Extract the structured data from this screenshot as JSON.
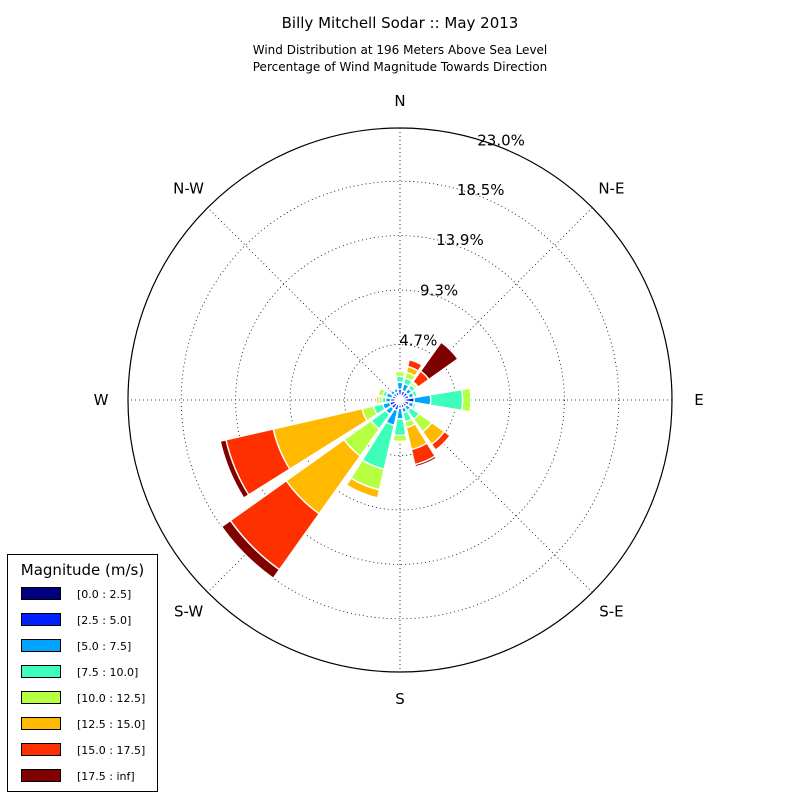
{
  "chart_data": {
    "type": "polar-bar",
    "title": "Billy Mitchell Sodar :: May 2013",
    "subtitle_lines": [
      "Wind Distribution at 196 Meters Above Sea Level",
      "Percentage of Wind Magnitude Towards Direction"
    ],
    "direction_labels": [
      "N",
      "N-E",
      "E",
      "S-E",
      "S",
      "S-W",
      "W",
      "N-W"
    ],
    "radial_tick_labels": [
      "4.7%",
      "9.3%",
      "13.9%",
      "18.5%",
      "23.0%"
    ],
    "radial_ticks": [
      4.7,
      9.3,
      13.9,
      18.5,
      23.0
    ],
    "rmax": 23.0,
    "units": "percent of observations",
    "legend_title": "Magnitude (m/s)",
    "bins": [
      {
        "label": "[0.0 : 2.5]",
        "color": "#000080"
      },
      {
        "label": "[2.5 : 5.0]",
        "color": "#0020ff"
      },
      {
        "label": "[5.0 : 7.5]",
        "color": "#00a4ff"
      },
      {
        "label": "[7.5 : 10.0]",
        "color": "#3dffba"
      },
      {
        "label": "[10.0 : 12.5]",
        "color": "#b6ff41"
      },
      {
        "label": "[12.5 : 15.0]",
        "color": "#ffb900"
      },
      {
        "label": "[15.0 : 17.5]",
        "color": "#ff3000"
      },
      {
        "label": "[17.5 : inf]",
        "color": "#800000"
      }
    ],
    "directions": [
      0,
      22.5,
      45,
      67.5,
      90,
      112.5,
      135,
      157.5,
      180,
      202.5,
      225,
      247.5,
      270,
      292.5,
      315,
      337.5
    ],
    "cumulative": [
      [
        0.3,
        0.9,
        1.5,
        2.0,
        2.4,
        2.4,
        2.4,
        2.4
      ],
      [
        0.3,
        0.8,
        1.4,
        1.9,
        2.4,
        2.9,
        3.5,
        3.6
      ],
      [
        0.3,
        0.8,
        1.2,
        1.6,
        1.8,
        1.9,
        3.0,
        6.0
      ],
      [
        0.3,
        0.8,
        1.2,
        1.5,
        1.5,
        1.5,
        1.5,
        1.5
      ],
      [
        0.3,
        1.2,
        2.6,
        5.3,
        6.0,
        6.0,
        6.0,
        6.0
      ],
      [
        0.3,
        0.8,
        1.2,
        1.4,
        1.4,
        1.4,
        1.4,
        1.4
      ],
      [
        0.3,
        0.7,
        1.1,
        2.0,
        3.3,
        4.6,
        5.2,
        5.3
      ],
      [
        0.3,
        0.7,
        1.1,
        1.9,
        2.4,
        4.3,
        5.6,
        5.8
      ],
      [
        0.3,
        0.7,
        1.6,
        3.0,
        3.5,
        3.5,
        3.5,
        3.5
      ],
      [
        0.4,
        0.9,
        2.2,
        6.0,
        7.8,
        8.5,
        8.5,
        8.5
      ],
      [
        0.4,
        0.9,
        1.5,
        3.0,
        5.8,
        11.8,
        17.6,
        18.5
      ],
      [
        0.4,
        0.9,
        1.5,
        2.3,
        3.3,
        11.0,
        15.1,
        15.6
      ],
      [
        0.4,
        0.8,
        1.2,
        1.5,
        1.8,
        2.0,
        2.0,
        2.0
      ],
      [
        0.3,
        0.7,
        1.2,
        1.5,
        1.9,
        1.9,
        1.9,
        1.9
      ],
      [
        0.3,
        0.7,
        1.0,
        1.0,
        1.0,
        1.0,
        1.0,
        1.0
      ],
      [
        0.3,
        0.7,
        1.0,
        1.0,
        1.0,
        1.0,
        1.0,
        1.0
      ]
    ]
  }
}
